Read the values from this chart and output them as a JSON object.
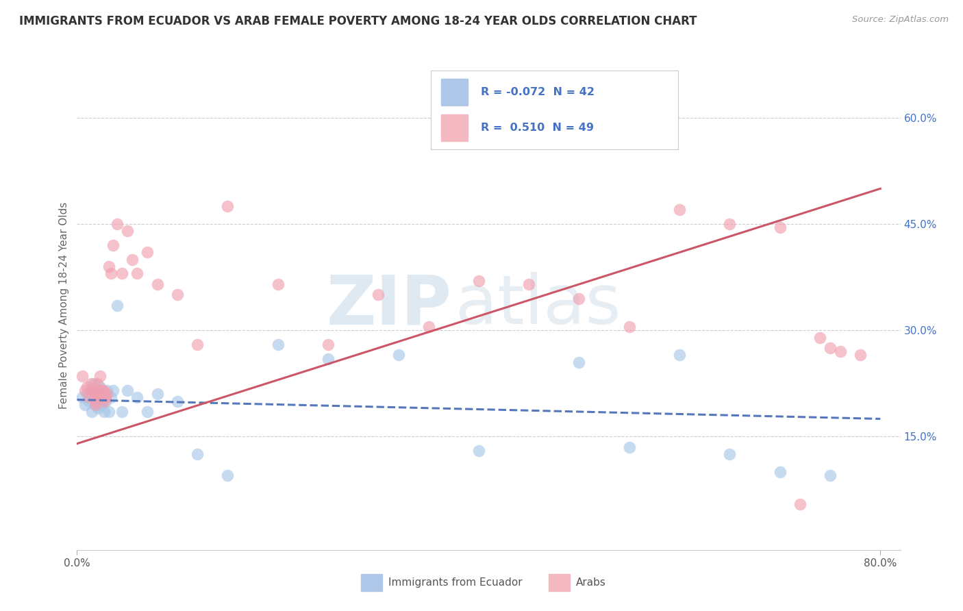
{
  "title": "IMMIGRANTS FROM ECUADOR VS ARAB FEMALE POVERTY AMONG 18-24 YEAR OLDS CORRELATION CHART",
  "source": "Source: ZipAtlas.com",
  "ylabel": "Female Poverty Among 18-24 Year Olds",
  "watermark_zip": "ZIP",
  "watermark_atlas": "atlas",
  "xlim": [
    0.0,
    0.82
  ],
  "ylim": [
    -0.01,
    0.68
  ],
  "xtick_left_label": "0.0%",
  "xtick_right_label": "80.0%",
  "xtick_left_val": 0.0,
  "xtick_right_val": 0.8,
  "yticks_right": [
    0.15,
    0.3,
    0.45,
    0.6
  ],
  "ytick_labels_right": [
    "15.0%",
    "30.0%",
    "45.0%",
    "60.0%"
  ],
  "blue_color": "#a8c8e8",
  "pink_color": "#f0a0b0",
  "blue_line_color": "#5577bb",
  "pink_line_color": "#cc5566",
  "background_color": "#ffffff",
  "grid_color": "#cccccc",
  "blue_R": -0.072,
  "blue_N": 42,
  "pink_R": 0.51,
  "pink_N": 49,
  "legend_color": "#4472c4",
  "legend_label_blue": "R = -0.072  N = 42",
  "legend_label_pink": "R =  0.510  N = 49",
  "bottom_label_blue": "Immigrants from Ecuador",
  "bottom_label_pink": "Arabs",
  "blue_trend_x": [
    0.0,
    0.8
  ],
  "blue_trend_y": [
    0.202,
    0.175
  ],
  "pink_trend_x": [
    0.0,
    0.8
  ],
  "pink_trend_y": [
    0.14,
    0.5
  ],
  "ecuador_x": [
    0.005,
    0.008,
    0.01,
    0.012,
    0.014,
    0.015,
    0.016,
    0.017,
    0.018,
    0.019,
    0.02,
    0.021,
    0.022,
    0.023,
    0.024,
    0.025,
    0.026,
    0.027,
    0.028,
    0.03,
    0.032,
    0.034,
    0.036,
    0.04,
    0.045,
    0.05,
    0.06,
    0.07,
    0.08,
    0.1,
    0.12,
    0.15,
    0.2,
    0.25,
    0.32,
    0.4,
    0.5,
    0.55,
    0.6,
    0.65,
    0.7,
    0.75
  ],
  "ecuador_y": [
    0.205,
    0.195,
    0.21,
    0.2,
    0.215,
    0.185,
    0.21,
    0.225,
    0.195,
    0.2,
    0.215,
    0.19,
    0.205,
    0.22,
    0.195,
    0.2,
    0.21,
    0.185,
    0.2,
    0.215,
    0.185,
    0.205,
    0.215,
    0.335,
    0.185,
    0.215,
    0.205,
    0.185,
    0.21,
    0.2,
    0.125,
    0.095,
    0.28,
    0.26,
    0.265,
    0.13,
    0.255,
    0.135,
    0.265,
    0.125,
    0.1,
    0.095
  ],
  "arab_x": [
    0.005,
    0.008,
    0.01,
    0.012,
    0.014,
    0.015,
    0.016,
    0.017,
    0.018,
    0.019,
    0.02,
    0.021,
    0.022,
    0.023,
    0.024,
    0.025,
    0.026,
    0.027,
    0.028,
    0.03,
    0.032,
    0.034,
    0.036,
    0.04,
    0.045,
    0.05,
    0.055,
    0.06,
    0.07,
    0.08,
    0.1,
    0.12,
    0.15,
    0.2,
    0.25,
    0.3,
    0.35,
    0.4,
    0.45,
    0.5,
    0.55,
    0.6,
    0.65,
    0.7,
    0.72,
    0.74,
    0.75,
    0.76,
    0.78
  ],
  "arab_y": [
    0.235,
    0.215,
    0.22,
    0.205,
    0.225,
    0.215,
    0.215,
    0.21,
    0.195,
    0.2,
    0.225,
    0.21,
    0.215,
    0.235,
    0.21,
    0.215,
    0.215,
    0.2,
    0.205,
    0.21,
    0.39,
    0.38,
    0.42,
    0.45,
    0.38,
    0.44,
    0.4,
    0.38,
    0.41,
    0.365,
    0.35,
    0.28,
    0.475,
    0.365,
    0.28,
    0.35,
    0.305,
    0.37,
    0.365,
    0.345,
    0.305,
    0.47,
    0.45,
    0.445,
    0.055,
    0.29,
    0.275,
    0.27,
    0.265
  ]
}
